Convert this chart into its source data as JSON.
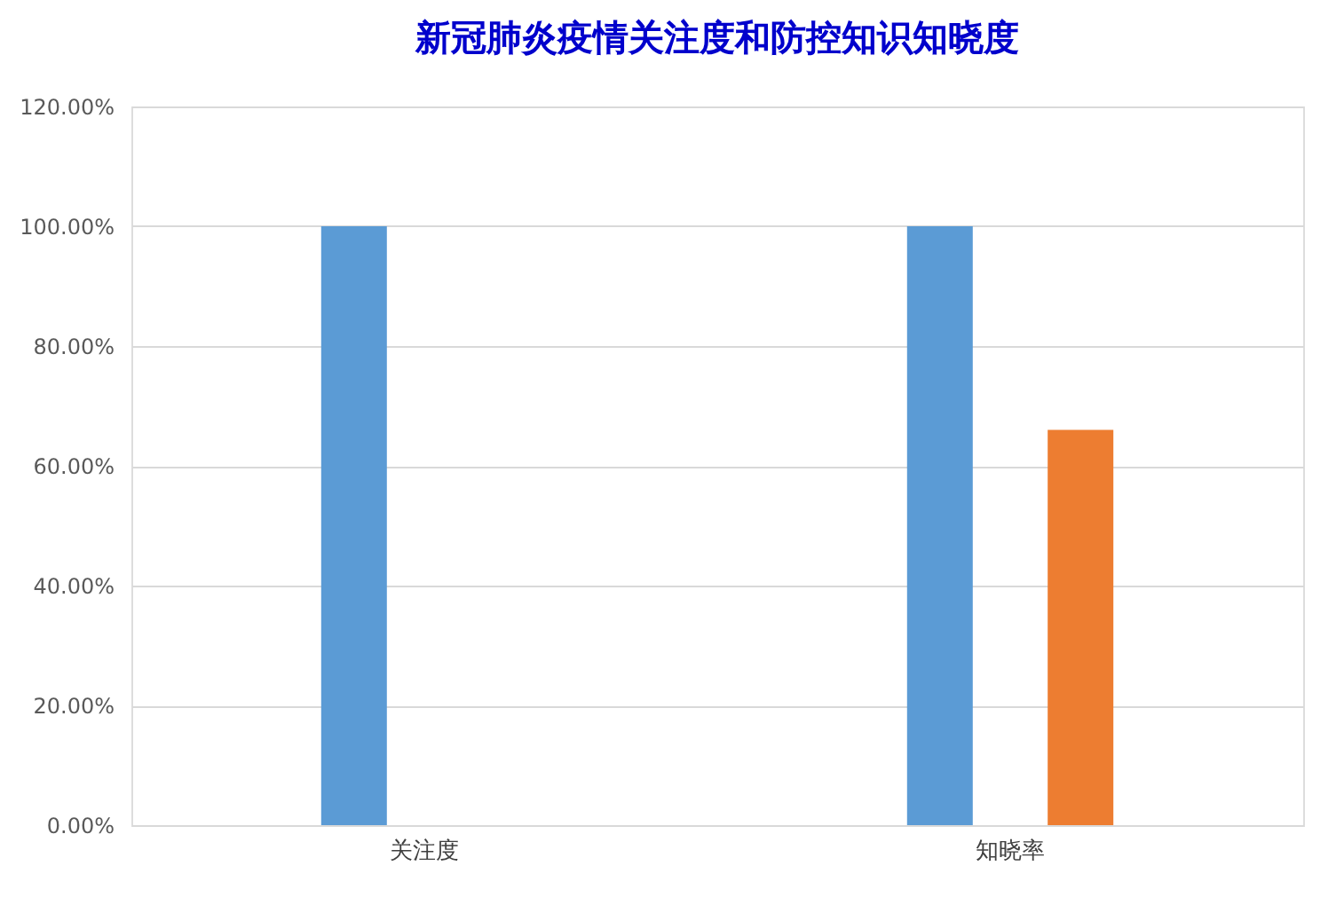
{
  "chart_data": {
    "type": "bar",
    "title": "新冠肺炎疫情关注度和防控知识知晓度",
    "categories": [
      "关注度",
      "知晓率"
    ],
    "series": [
      {
        "color": "#5b9bd5",
        "values": [
          100,
          100
        ]
      },
      {
        "color": "#ed7d31",
        "values": [
          null,
          66
        ]
      }
    ],
    "ylim": [
      0,
      120
    ],
    "yticks": [
      {
        "value": 0,
        "label": "0.00%"
      },
      {
        "value": 20,
        "label": "20.00%"
      },
      {
        "value": 40,
        "label": "40.00%"
      },
      {
        "value": 60,
        "label": "60.00%"
      },
      {
        "value": 80,
        "label": "80.00%"
      },
      {
        "value": 100,
        "label": "100.00%"
      },
      {
        "value": 120,
        "label": "120.00%"
      }
    ],
    "grid": "y",
    "legend": false
  }
}
